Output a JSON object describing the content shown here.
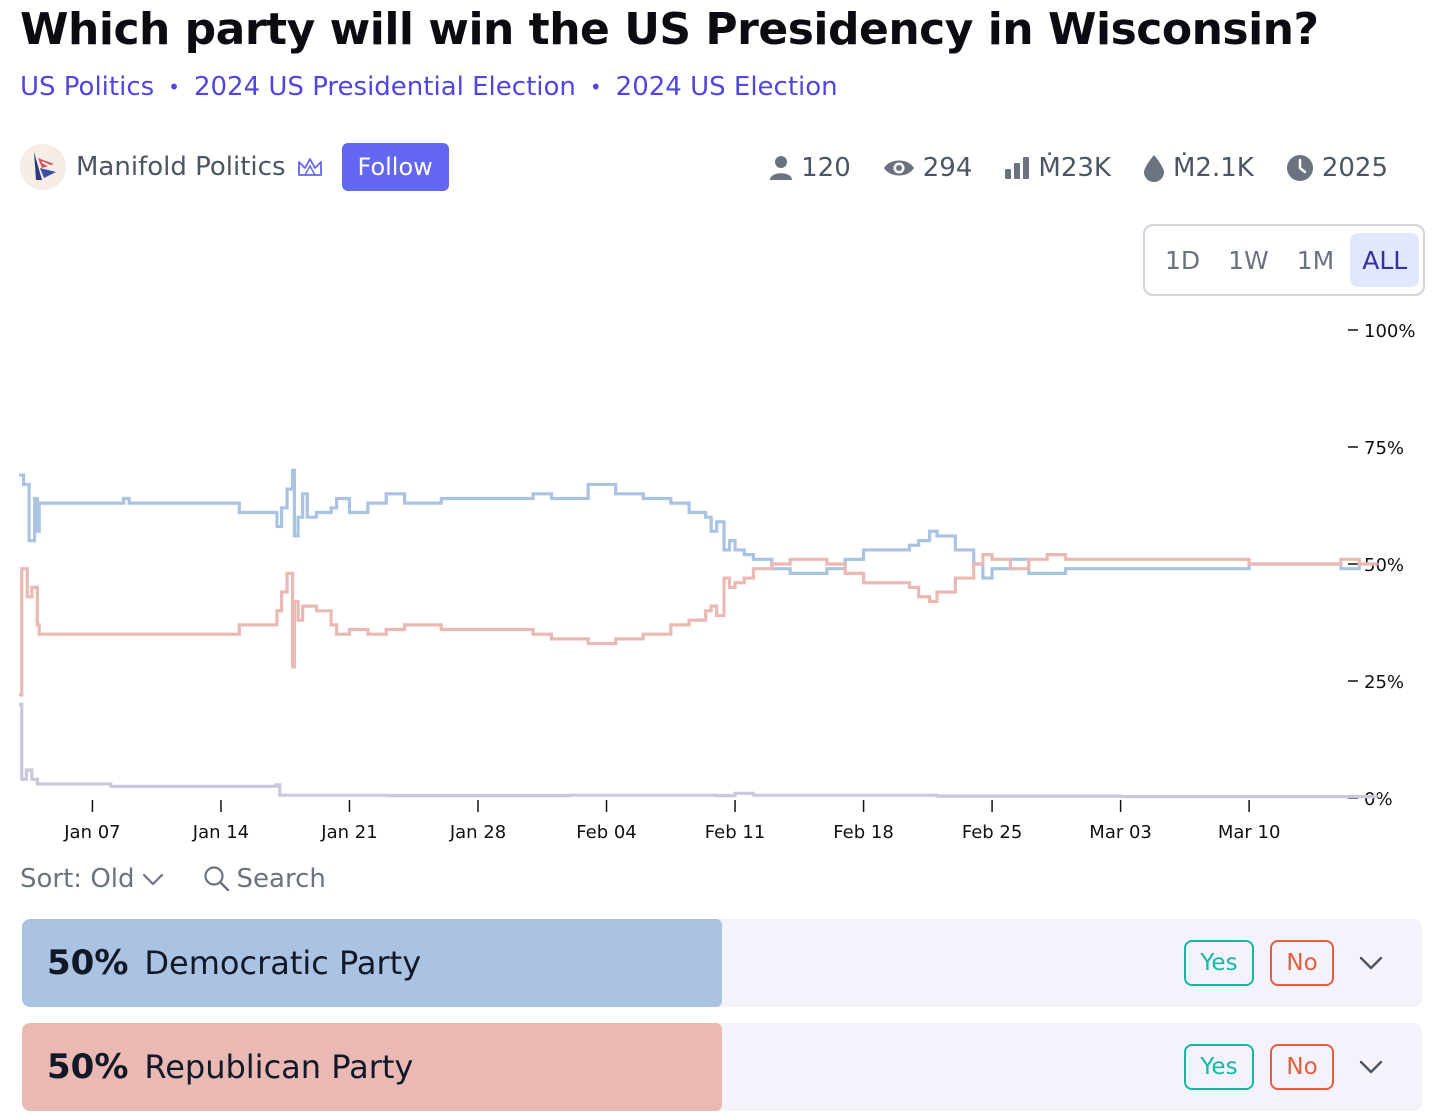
{
  "title": "Which party will win the US Presidency in Wisconsin?",
  "tags": [
    "US Politics",
    "2024 US Presidential Election",
    "2024 US Election"
  ],
  "creator": {
    "name": "Manifold Politics",
    "follow_label": "Follow"
  },
  "stats": {
    "traders": "120",
    "views": "294",
    "volume": "Ṁ23K",
    "liquidity": "Ṁ2.1K",
    "close": "2025"
  },
  "time_ranges": [
    "1D",
    "1W",
    "1M",
    "ALL"
  ],
  "active_range": "ALL",
  "controls": {
    "sort_label": "Sort: Old",
    "search_label": "Search"
  },
  "answers": [
    {
      "percent": "50%",
      "name": "Democratic Party",
      "prob": 0.5,
      "color": "#abc3e2",
      "yes": "Yes",
      "no": "No"
    },
    {
      "percent": "50%",
      "name": "Republican Party",
      "prob": 0.5,
      "color": "#ebb9b3",
      "yes": "Yes",
      "no": "No"
    }
  ],
  "colors": {
    "democratic": "#abc3e2",
    "republican": "#ebb9b3",
    "other": "#cbc8de",
    "accent": "#6366f1"
  },
  "chart_data": {
    "type": "line",
    "x_ticks": [
      "Jan 07",
      "Jan 14",
      "Jan 21",
      "Jan 28",
      "Feb 04",
      "Feb 11",
      "Feb 18",
      "Feb 25",
      "Mar 03",
      "Mar 10"
    ],
    "y_ticks": [
      "0%",
      "25%",
      "50%",
      "75%",
      "100%"
    ],
    "ylim": [
      0,
      100
    ],
    "x_unit": "days since Jan 03",
    "series": [
      {
        "name": "Democratic Party",
        "color": "#abc3e2",
        "points": [
          [
            0,
            69
          ],
          [
            0.25,
            67
          ],
          [
            0.55,
            55
          ],
          [
            0.85,
            64
          ],
          [
            1.0,
            57
          ],
          [
            1.1,
            63
          ],
          [
            5.7,
            64
          ],
          [
            6.0,
            63
          ],
          [
            12.0,
            61
          ],
          [
            14.05,
            58
          ],
          [
            14.3,
            62
          ],
          [
            14.6,
            66
          ],
          [
            14.9,
            70
          ],
          [
            15.0,
            56
          ],
          [
            15.2,
            60
          ],
          [
            15.45,
            65
          ],
          [
            15.7,
            60
          ],
          [
            16.2,
            61
          ],
          [
            17.0,
            62
          ],
          [
            17.3,
            64
          ],
          [
            18.0,
            61
          ],
          [
            19.0,
            63
          ],
          [
            20.0,
            65
          ],
          [
            21.0,
            63
          ],
          [
            23.0,
            64
          ],
          [
            27.0,
            64
          ],
          [
            28.0,
            65
          ],
          [
            29.0,
            64
          ],
          [
            31.0,
            67
          ],
          [
            32.5,
            65
          ],
          [
            34.0,
            64
          ],
          [
            35.5,
            63
          ],
          [
            36.5,
            61
          ],
          [
            37.4,
            60
          ],
          [
            37.7,
            57
          ],
          [
            38.0,
            59
          ],
          [
            38.4,
            53
          ],
          [
            38.7,
            55
          ],
          [
            39.0,
            53
          ],
          [
            39.5,
            52
          ],
          [
            40.0,
            51
          ],
          [
            41.0,
            49
          ],
          [
            42.0,
            48
          ],
          [
            44.0,
            49
          ],
          [
            45.0,
            51
          ],
          [
            46.0,
            53
          ],
          [
            47.0,
            53
          ],
          [
            48.5,
            54
          ],
          [
            49.0,
            55
          ],
          [
            49.6,
            57
          ],
          [
            50.0,
            56
          ],
          [
            51.0,
            53
          ],
          [
            52.0,
            50
          ],
          [
            52.5,
            47
          ],
          [
            53.0,
            49
          ],
          [
            54.0,
            51
          ],
          [
            55.0,
            48
          ],
          [
            56.0,
            48
          ],
          [
            57.0,
            49
          ],
          [
            59.0,
            49
          ],
          [
            61.0,
            49
          ],
          [
            64.0,
            49
          ],
          [
            66.0,
            49
          ],
          [
            67.0,
            50
          ],
          [
            69.0,
            50
          ],
          [
            71.0,
            50
          ],
          [
            72.0,
            49
          ],
          [
            73.0,
            50
          ],
          [
            74.0,
            50
          ]
        ]
      },
      {
        "name": "Republican Party",
        "color": "#ebb9b3",
        "points": [
          [
            0,
            22
          ],
          [
            0.15,
            49
          ],
          [
            0.45,
            43
          ],
          [
            0.7,
            45
          ],
          [
            1.0,
            37
          ],
          [
            1.1,
            35
          ],
          [
            5.7,
            35
          ],
          [
            6.0,
            35
          ],
          [
            12.0,
            37
          ],
          [
            14.05,
            40
          ],
          [
            14.3,
            44
          ],
          [
            14.6,
            48
          ],
          [
            14.9,
            28
          ],
          [
            15.0,
            42
          ],
          [
            15.2,
            38
          ],
          [
            15.45,
            41
          ],
          [
            15.7,
            41
          ],
          [
            16.2,
            40
          ],
          [
            17.0,
            37
          ],
          [
            17.3,
            35
          ],
          [
            18.0,
            36
          ],
          [
            19.0,
            35
          ],
          [
            20.0,
            36
          ],
          [
            21.0,
            37
          ],
          [
            23.0,
            36
          ],
          [
            27.0,
            36
          ],
          [
            28.0,
            35
          ],
          [
            29.0,
            34
          ],
          [
            31.0,
            33
          ],
          [
            32.5,
            34
          ],
          [
            34.0,
            35
          ],
          [
            35.5,
            37
          ],
          [
            36.5,
            38
          ],
          [
            37.4,
            40
          ],
          [
            37.7,
            41
          ],
          [
            38.0,
            39
          ],
          [
            38.4,
            47
          ],
          [
            38.7,
            45
          ],
          [
            39.0,
            46
          ],
          [
            39.5,
            47
          ],
          [
            40.0,
            49
          ],
          [
            41.0,
            50
          ],
          [
            42.0,
            51
          ],
          [
            44.0,
            50
          ],
          [
            45.0,
            48
          ],
          [
            46.0,
            46
          ],
          [
            47.0,
            46
          ],
          [
            48.5,
            45
          ],
          [
            49.0,
            43
          ],
          [
            49.6,
            42
          ],
          [
            50.0,
            44
          ],
          [
            51.0,
            47
          ],
          [
            52.0,
            50
          ],
          [
            52.5,
            52
          ],
          [
            53.0,
            51
          ],
          [
            54.0,
            49
          ],
          [
            55.0,
            51
          ],
          [
            56.0,
            52
          ],
          [
            57.0,
            51
          ],
          [
            59.0,
            51
          ],
          [
            61.0,
            51
          ],
          [
            64.0,
            51
          ],
          [
            66.0,
            51
          ],
          [
            67.0,
            50
          ],
          [
            69.0,
            50
          ],
          [
            71.0,
            50
          ],
          [
            72.0,
            51
          ],
          [
            73.0,
            50
          ],
          [
            74.0,
            50
          ]
        ]
      },
      {
        "name": "Other",
        "color": "#cbc8de",
        "points": [
          [
            0,
            20
          ],
          [
            0.15,
            4
          ],
          [
            0.4,
            6
          ],
          [
            0.7,
            4
          ],
          [
            1.0,
            3
          ],
          [
            2.0,
            3
          ],
          [
            5.0,
            2.5
          ],
          [
            8.0,
            2.5
          ],
          [
            11.0,
            2.5
          ],
          [
            14.0,
            2.8
          ],
          [
            14.2,
            0.6
          ],
          [
            20.0,
            0.5
          ],
          [
            30.0,
            0.6
          ],
          [
            38.0,
            0.5
          ],
          [
            39.0,
            1.0
          ],
          [
            40.0,
            0.6
          ],
          [
            50.0,
            0.4
          ],
          [
            60.0,
            0.3
          ],
          [
            70.0,
            0.3
          ],
          [
            74.0,
            0.3
          ]
        ]
      }
    ]
  }
}
